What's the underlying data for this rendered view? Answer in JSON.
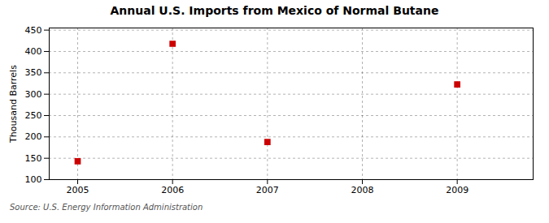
{
  "chart_data": {
    "type": "scatter",
    "title": "Annual U.S. Imports from Mexico of Normal Butane",
    "ylabel": "Thousand Barrels",
    "source": "Source: U.S. Energy Information Administration",
    "x": [
      2005,
      2006,
      2007,
      2009
    ],
    "values": [
      143,
      418,
      188,
      323
    ],
    "color": "#CC0000",
    "marker": "square",
    "xlim": [
      2004.7,
      2009.8
    ],
    "ylim": [
      100,
      455
    ],
    "xticks": [
      2005,
      2006,
      2007,
      2008,
      2009
    ],
    "yticks": [
      100,
      150,
      200,
      250,
      300,
      350,
      400,
      450
    ],
    "grid": true
  }
}
